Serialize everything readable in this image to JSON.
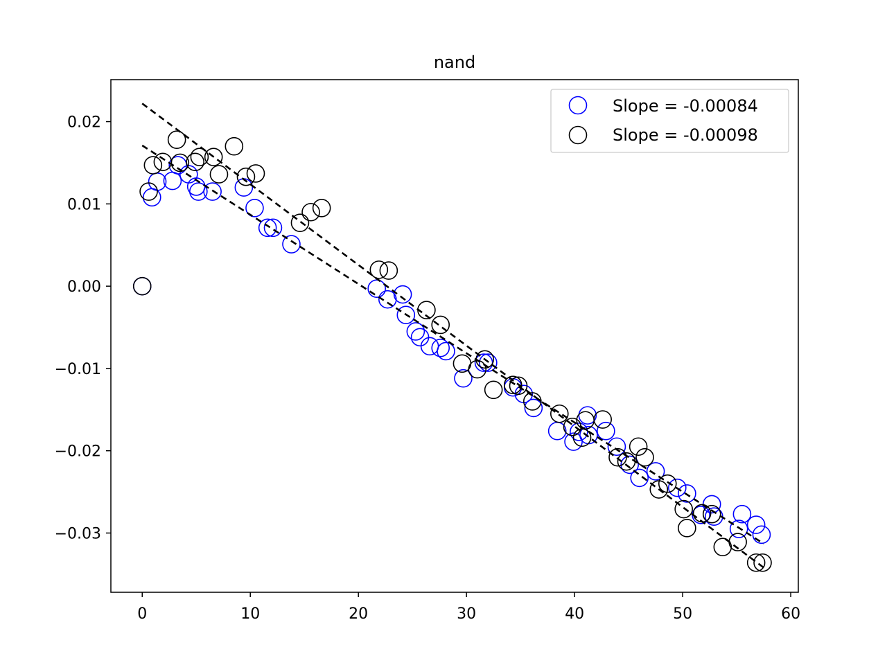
{
  "chart_data": {
    "type": "scatter",
    "title": "nand",
    "xlabel": "",
    "ylabel": "",
    "xlim": [
      -2.9,
      60.7
    ],
    "ylim": [
      -0.0372,
      0.0251
    ],
    "x_ticks": [
      0,
      10,
      20,
      30,
      40,
      50,
      60
    ],
    "y_ticks": [
      0.02,
      0.01,
      0.0,
      -0.01,
      -0.02,
      -0.03
    ],
    "x_tick_labels": [
      "0",
      "10",
      "20",
      "30",
      "40",
      "50",
      "60"
    ],
    "y_tick_labels": [
      "0.02",
      "0.01",
      "0.00",
      "−0.01",
      "−0.02",
      "−0.03"
    ],
    "grid": false,
    "legend_position": "top-right",
    "series": [
      {
        "name": "Slope = -0.00084",
        "color": "#0000ff",
        "marker": "open-circle",
        "points": [
          [
            0.0,
            0.0
          ],
          [
            0.9,
            0.0108
          ],
          [
            1.4,
            0.0127
          ],
          [
            2.8,
            0.0128
          ],
          [
            3.3,
            0.0147
          ],
          [
            4.3,
            0.0136
          ],
          [
            5.0,
            0.0121
          ],
          [
            5.2,
            0.0115
          ],
          [
            6.5,
            0.0115
          ],
          [
            9.4,
            0.012
          ],
          [
            10.4,
            0.0095
          ],
          [
            11.6,
            0.0071
          ],
          [
            12.1,
            0.0071
          ],
          [
            13.8,
            0.0051
          ],
          [
            21.7,
            -0.0003
          ],
          [
            22.7,
            -0.0016
          ],
          [
            24.1,
            -0.001
          ],
          [
            24.4,
            -0.0035
          ],
          [
            25.3,
            -0.0055
          ],
          [
            25.7,
            -0.0062
          ],
          [
            26.6,
            -0.0073
          ],
          [
            27.6,
            -0.0075
          ],
          [
            28.1,
            -0.0079
          ],
          [
            29.7,
            -0.0112
          ],
          [
            31.6,
            -0.0093
          ],
          [
            32.0,
            -0.0093
          ],
          [
            34.3,
            -0.0123
          ],
          [
            35.3,
            -0.0131
          ],
          [
            36.2,
            -0.0148
          ],
          [
            38.4,
            -0.0176
          ],
          [
            39.9,
            -0.0189
          ],
          [
            40.4,
            -0.0177
          ],
          [
            41.2,
            -0.0157
          ],
          [
            41.3,
            -0.0181
          ],
          [
            42.9,
            -0.0176
          ],
          [
            43.9,
            -0.0195
          ],
          [
            45.1,
            -0.0217
          ],
          [
            46.0,
            -0.0233
          ],
          [
            47.5,
            -0.0225
          ],
          [
            49.5,
            -0.0245
          ],
          [
            50.4,
            -0.0252
          ],
          [
            51.7,
            -0.0278
          ],
          [
            52.7,
            -0.0265
          ],
          [
            52.9,
            -0.028
          ],
          [
            55.5,
            -0.0277
          ],
          [
            55.2,
            -0.0295
          ],
          [
            56.8,
            -0.029
          ],
          [
            57.3,
            -0.0302
          ]
        ],
        "fit_line": {
          "x": [
            0.0,
            57.5
          ],
          "y": [
            0.0171,
            -0.0313
          ]
        }
      },
      {
        "name": "Slope = -0.00098",
        "color": "#000000",
        "marker": "open-circle",
        "points": [
          [
            0.0,
            0.0
          ],
          [
            0.6,
            0.0115
          ],
          [
            1.0,
            0.0147
          ],
          [
            1.9,
            0.0151
          ],
          [
            3.2,
            0.0178
          ],
          [
            3.5,
            0.015
          ],
          [
            4.9,
            0.0151
          ],
          [
            5.3,
            0.0157
          ],
          [
            6.6,
            0.0157
          ],
          [
            7.1,
            0.0136
          ],
          [
            8.5,
            0.017
          ],
          [
            9.6,
            0.0133
          ],
          [
            10.5,
            0.0137
          ],
          [
            14.6,
            0.0077
          ],
          [
            15.6,
            0.009
          ],
          [
            16.6,
            0.0095
          ],
          [
            21.9,
            0.002
          ],
          [
            22.8,
            0.0019
          ],
          [
            26.3,
            -0.0029
          ],
          [
            27.6,
            -0.0047
          ],
          [
            29.6,
            -0.0094
          ],
          [
            31.0,
            -0.0101
          ],
          [
            31.7,
            -0.0089
          ],
          [
            32.5,
            -0.0126
          ],
          [
            34.3,
            -0.012
          ],
          [
            34.8,
            -0.0121
          ],
          [
            36.1,
            -0.014
          ],
          [
            38.6,
            -0.0155
          ],
          [
            39.8,
            -0.0171
          ],
          [
            40.7,
            -0.0184
          ],
          [
            41.0,
            -0.0163
          ],
          [
            42.6,
            -0.0162
          ],
          [
            44.0,
            -0.0208
          ],
          [
            44.8,
            -0.0213
          ],
          [
            45.9,
            -0.0195
          ],
          [
            46.5,
            -0.0208
          ],
          [
            47.8,
            -0.0247
          ],
          [
            48.6,
            -0.024
          ],
          [
            50.1,
            -0.0271
          ],
          [
            50.4,
            -0.0294
          ],
          [
            51.8,
            -0.0276
          ],
          [
            52.7,
            -0.0277
          ],
          [
            53.7,
            -0.0317
          ],
          [
            55.1,
            -0.0311
          ],
          [
            56.8,
            -0.0336
          ],
          [
            57.4,
            -0.0336
          ]
        ],
        "fit_line": {
          "x": [
            0.0,
            57.5
          ],
          "y": [
            0.0222,
            -0.0342
          ]
        }
      }
    ]
  }
}
